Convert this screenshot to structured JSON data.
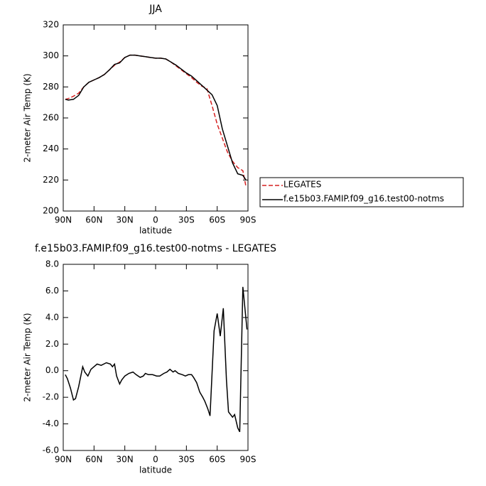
{
  "chart_data": [
    {
      "type": "line",
      "title": "JJA",
      "xlabel": "latitude",
      "ylabel": "2-meter Air Temp (K)",
      "xlim": [
        90,
        -90
      ],
      "ylim": [
        200,
        320
      ],
      "xticks": [
        {
          "value": 90,
          "label": "90N"
        },
        {
          "value": 60,
          "label": "60N"
        },
        {
          "value": 30,
          "label": "30N"
        },
        0,
        {
          "value": -30,
          "label": "30S"
        },
        {
          "value": -60,
          "label": "60S"
        },
        {
          "value": -90,
          "label": "90S"
        }
      ],
      "yticks": [
        200,
        220,
        240,
        260,
        280,
        300,
        320
      ],
      "legend": "outside-right",
      "x": [
        88,
        85,
        80,
        75,
        70,
        65,
        60,
        55,
        50,
        45,
        40,
        35,
        30,
        25,
        20,
        15,
        10,
        5,
        0,
        -5,
        -10,
        -15,
        -20,
        -25,
        -30,
        -35,
        -40,
        -45,
        -50,
        -55,
        -60,
        -65,
        -70,
        -75,
        -80,
        -85,
        -88
      ],
      "series": [
        {
          "name": "LEGATES",
          "color": "#d62020",
          "style": "dashed",
          "values": [
            272,
            272.5,
            274,
            276,
            280,
            283,
            284.5,
            286,
            288,
            291,
            294,
            296,
            299,
            300.5,
            300.5,
            300,
            299.5,
            299,
            298.5,
            298.5,
            298,
            296,
            293.5,
            291,
            288.5,
            286,
            283,
            280.5,
            279,
            268,
            256,
            247,
            238,
            232,
            228,
            226,
            216
          ]
        },
        {
          "name": "f.e15b03.FAMIP.f09_g16.test00-notms",
          "color": "#000000",
          "style": "solid",
          "values": [
            272,
            271.5,
            272,
            274.5,
            280,
            283,
            284.5,
            286,
            288,
            291,
            294.5,
            295.5,
            299,
            300.5,
            300.5,
            300,
            299.5,
            299,
            298.5,
            298.5,
            298,
            296,
            294,
            291.5,
            289,
            287,
            284,
            281,
            278,
            275,
            268,
            253,
            242,
            231,
            224,
            223,
            220
          ]
        }
      ]
    },
    {
      "type": "line",
      "title": "f.e15b03.FAMIP.f09_g16.test00-notms - LEGATES",
      "xlabel": "latitude",
      "ylabel": "2-meter Air Temp (K)",
      "xlim": [
        90,
        -90
      ],
      "ylim": [
        -6,
        8
      ],
      "xticks": [
        {
          "value": 90,
          "label": "90N"
        },
        {
          "value": 60,
          "label": "60N"
        },
        {
          "value": 30,
          "label": "30N"
        },
        0,
        {
          "value": -30,
          "label": "30S"
        },
        {
          "value": -60,
          "label": "60S"
        },
        {
          "value": -90,
          "label": "90S"
        }
      ],
      "yticks": [
        {
          "value": -6,
          "label": "-6.0"
        },
        {
          "value": -4,
          "label": "-4.0"
        },
        {
          "value": -2,
          "label": "-2.0"
        },
        {
          "value": 0,
          "label": "0.0"
        },
        {
          "value": 2,
          "label": "2.0"
        },
        {
          "value": 4,
          "label": "4.0"
        },
        {
          "value": 6,
          "label": "6.0"
        },
        {
          "value": 8,
          "label": "8.0"
        }
      ],
      "x": [
        88,
        86,
        83,
        80,
        78,
        75,
        71,
        69,
        66,
        63,
        60,
        57,
        53,
        48,
        44,
        42,
        40,
        38,
        35,
        33,
        30,
        26,
        22,
        19,
        15,
        12,
        10,
        7,
        3,
        -1,
        -4,
        -8,
        -11,
        -14,
        -17,
        -19,
        -22,
        -26,
        -29,
        -32,
        -35,
        -37,
        -40,
        -43,
        -46,
        -48,
        -51,
        -53,
        -57,
        -60,
        -63,
        -66,
        -69,
        -71,
        -75,
        -77,
        -80,
        -82,
        -85,
        -89
      ],
      "series": [
        {
          "color": "#000000",
          "style": "solid",
          "values": [
            -0.3,
            -0.6,
            -1.3,
            -2.2,
            -2.1,
            -1.2,
            0.3,
            -0.1,
            -0.4,
            0.1,
            0.3,
            0.5,
            0.4,
            0.6,
            0.5,
            0.3,
            0.5,
            -0.4,
            -1.0,
            -0.7,
            -0.4,
            -0.2,
            -0.1,
            -0.3,
            -0.5,
            -0.4,
            -0.2,
            -0.3,
            -0.3,
            -0.4,
            -0.4,
            -0.2,
            -0.1,
            0.1,
            -0.1,
            0.0,
            -0.2,
            -0.3,
            -0.4,
            -0.3,
            -0.3,
            -0.5,
            -0.9,
            -1.6,
            -2.0,
            -2.3,
            -2.9,
            -3.4,
            3.0,
            4.3,
            2.6,
            4.7,
            -0.7,
            -3.1,
            -3.5,
            -3.3,
            -4.3,
            -4.6,
            6.3,
            3.1
          ]
        }
      ]
    }
  ]
}
